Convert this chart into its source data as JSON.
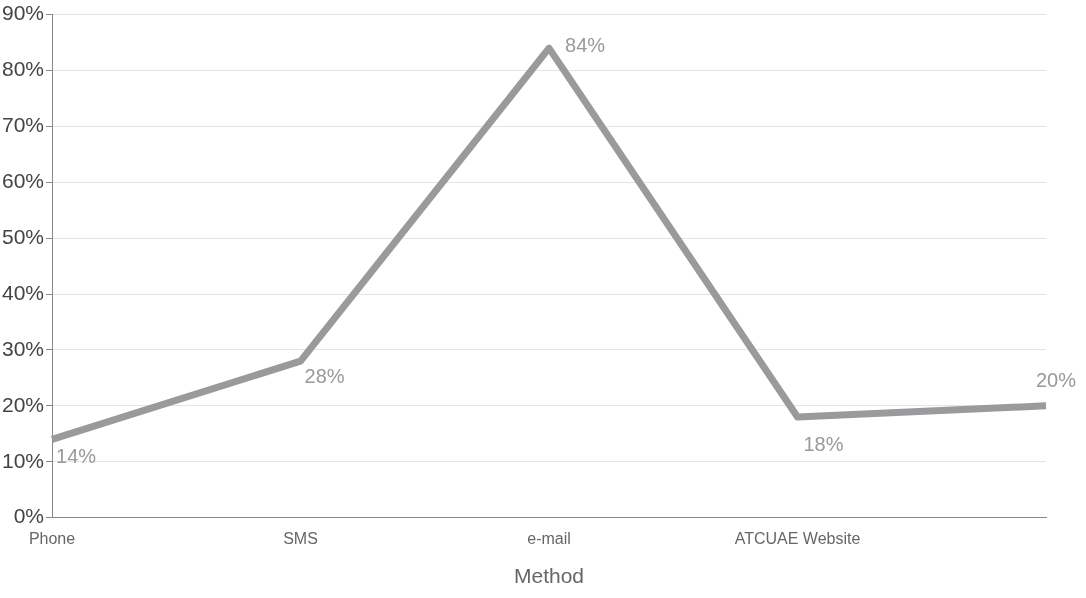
{
  "chart_data": {
    "type": "line",
    "xlabel": "Method",
    "categories": [
      "Phone",
      "SMS",
      "e-mail",
      "ATCUAE Website",
      null
    ],
    "series": [
      {
        "color": "#9a9a9c",
        "values": [
          14,
          28,
          84,
          18,
          20
        ]
      }
    ],
    "ylim": [
      0,
      90
    ],
    "yticks": [
      {
        "value": 0,
        "label": "0%"
      },
      {
        "value": 10,
        "label": "10%"
      },
      {
        "value": 20,
        "label": "20%"
      },
      {
        "value": 30,
        "label": "30%"
      },
      {
        "value": 40,
        "label": "40%"
      },
      {
        "value": 50,
        "label": "50%"
      },
      {
        "value": 60,
        "label": "60%"
      },
      {
        "value": 70,
        "label": "70%"
      },
      {
        "value": 80,
        "label": "80%"
      },
      {
        "value": 90,
        "label": "90%"
      }
    ],
    "value_labels": [
      "14%",
      "28%",
      "84%",
      "18%",
      "20%"
    ],
    "grid": "y",
    "legend": false,
    "marker": "none",
    "line_style": "solid"
  }
}
